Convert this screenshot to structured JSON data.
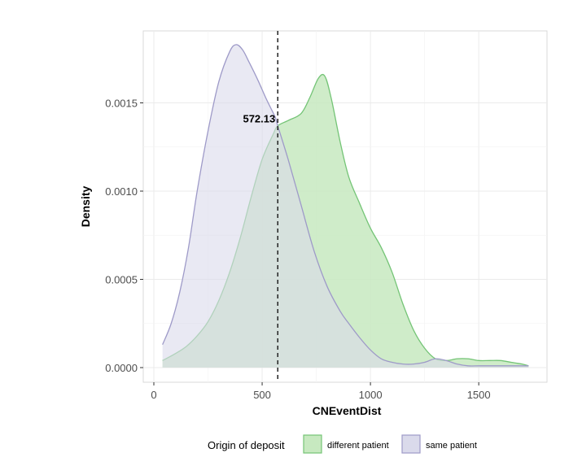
{
  "chart_data": {
    "type": "area",
    "xlabel": "CNEventDist",
    "ylabel": "Density",
    "xlim": [
      0,
      1750
    ],
    "ylim": [
      0,
      0.00185
    ],
    "x_ticks": [
      0,
      500,
      1000,
      1500
    ],
    "x_tick_labels": [
      "0",
      "500",
      "1000",
      "1500"
    ],
    "y_ticks": [
      0,
      0.0005,
      0.001,
      0.0015
    ],
    "y_tick_labels": [
      "0.0000",
      "0.0005",
      "0.0010",
      "0.0015"
    ],
    "grid": true,
    "legend_position": "bottom",
    "legend_title": "Origin of deposit",
    "vline": {
      "x": 572.13,
      "label": "572.13",
      "style": "dashed"
    },
    "series": [
      {
        "name": "different patient",
        "color": "#74c476",
        "fill": "#c7e9c0",
        "x": [
          40,
          100,
          150,
          200,
          250,
          300,
          350,
          400,
          450,
          500,
          550,
          572,
          620,
          680,
          720,
          760,
          790,
          820,
          860,
          900,
          950,
          1000,
          1050,
          1100,
          1150,
          1200,
          1250,
          1300,
          1350,
          1400,
          1450,
          1500,
          1550,
          1600,
          1650,
          1700,
          1730
        ],
        "y": [
          4e-05,
          8e-05,
          0.00012,
          0.00018,
          0.00026,
          0.00038,
          0.00054,
          0.00074,
          0.00097,
          0.00118,
          0.00132,
          0.00137,
          0.0014,
          0.00144,
          0.00153,
          0.00164,
          0.00165,
          0.00152,
          0.00128,
          0.00108,
          0.00093,
          0.00079,
          0.00068,
          0.00054,
          0.00036,
          0.00021,
          0.00011,
          5e-05,
          4e-05,
          5e-05,
          5e-05,
          4e-05,
          4e-05,
          4e-05,
          3e-05,
          2e-05,
          1e-05
        ]
      },
      {
        "name": "same patient",
        "color": "#9e9ac8",
        "fill": "#dadaeb",
        "x": [
          40,
          80,
          120,
          160,
          200,
          250,
          300,
          350,
          380,
          410,
          440,
          480,
          520,
          560,
          572,
          620,
          680,
          740,
          800,
          860,
          900,
          950,
          1000,
          1050,
          1100,
          1150,
          1200,
          1250,
          1300,
          1350,
          1400,
          1450,
          1500,
          1550,
          1600,
          1650,
          1700,
          1730
        ],
        "y": [
          0.00013,
          0.00025,
          0.00043,
          0.00068,
          0.001,
          0.00134,
          0.00162,
          0.00179,
          0.00183,
          0.0018,
          0.00173,
          0.00163,
          0.00152,
          0.00142,
          0.00137,
          0.00118,
          0.00092,
          0.00066,
          0.00046,
          0.00032,
          0.00025,
          0.00017,
          0.0001,
          5e-05,
          3e-05,
          2e-05,
          2e-05,
          3e-05,
          5e-05,
          4e-05,
          2e-05,
          1e-05,
          1e-05,
          1e-05,
          1e-05,
          1e-05,
          1e-05,
          1e-05
        ]
      }
    ]
  }
}
